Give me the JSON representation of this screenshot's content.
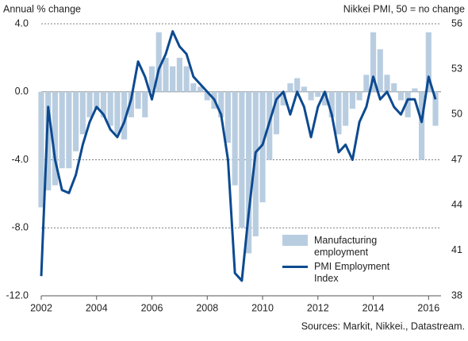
{
  "chart_data": {
    "type": "bar-line",
    "ylabel": "Annual % change",
    "y2label": "Nikkei PMI, 50 = no change",
    "source": "Sources: Markit, Nikkei., Datastream.",
    "xlim": [
      2002,
      2016.45
    ],
    "xticks": [
      2002,
      2004,
      2006,
      2008,
      2010,
      2012,
      2014,
      2016
    ],
    "ylim": [
      -12,
      4
    ],
    "yticks": [
      {
        "value": -12,
        "label": "-12.0"
      },
      {
        "value": -8,
        "label": "-8.0"
      },
      {
        "value": -4,
        "label": "-4.0"
      },
      {
        "value": 0,
        "label": "0.0"
      },
      {
        "value": 4,
        "label": "4.0"
      }
    ],
    "y2lim": [
      38,
      56
    ],
    "y2ticks": [
      38,
      41,
      44,
      47,
      50,
      53,
      56
    ],
    "grid": true,
    "x": [
      2002.0,
      2002.25,
      2002.5,
      2002.75,
      2003.0,
      2003.25,
      2003.5,
      2003.75,
      2004.0,
      2004.25,
      2004.5,
      2004.75,
      2005.0,
      2005.25,
      2005.5,
      2005.75,
      2006.0,
      2006.25,
      2006.5,
      2006.75,
      2007.0,
      2007.25,
      2007.5,
      2007.75,
      2008.0,
      2008.25,
      2008.5,
      2008.75,
      2009.0,
      2009.25,
      2009.5,
      2009.75,
      2010.0,
      2010.25,
      2010.5,
      2010.75,
      2011.0,
      2011.25,
      2011.5,
      2011.75,
      2012.0,
      2012.25,
      2012.5,
      2012.75,
      2013.0,
      2013.25,
      2013.5,
      2013.75,
      2014.0,
      2014.25,
      2014.5,
      2014.75,
      2015.0,
      2015.25,
      2015.5,
      2015.75,
      2016.0,
      2016.25
    ],
    "series": [
      {
        "name": "Manufacturing employment",
        "color": "#b9cde1",
        "kind": "bar",
        "values": [
          -6.8,
          -5.8,
          -5.5,
          -4.5,
          -4.5,
          -3.5,
          -2.5,
          -1.5,
          -1.0,
          -1.5,
          -2.0,
          -2.5,
          -2.8,
          -1.5,
          -1.0,
          -1.5,
          1.5,
          3.5,
          2.0,
          1.5,
          2.0,
          1.5,
          0.5,
          0.3,
          -0.5,
          -1.0,
          -1.5,
          -3.0,
          -5.5,
          -8.0,
          -9.5,
          -8.5,
          -6.5,
          -4.0,
          -2.5,
          -0.8,
          0.5,
          0.8,
          0.3,
          -0.5,
          -0.3,
          -0.8,
          -1.5,
          -2.5,
          -2.0,
          -1.0,
          -0.5,
          1.0,
          3.5,
          2.5,
          1.0,
          0.5,
          -0.5,
          -1.5,
          0.2,
          -4.0,
          3.5,
          -2.0
        ]
      },
      {
        "name": "PMI Employment Index",
        "color": "#0d4a90",
        "kind": "line",
        "axis": "y2",
        "values": [
          39.3,
          50.5,
          47.0,
          45.0,
          44.8,
          46.0,
          48.0,
          49.5,
          50.5,
          50.0,
          49.0,
          48.5,
          49.5,
          51.0,
          53.5,
          52.5,
          51.0,
          53.0,
          54.0,
          55.5,
          54.5,
          54.0,
          52.5,
          52.0,
          51.5,
          51.0,
          50.0,
          47.0,
          39.5,
          39.0,
          43.5,
          47.5,
          48.0,
          49.5,
          51.0,
          51.5,
          50.0,
          51.5,
          50.5,
          48.5,
          50.5,
          51.5,
          50.0,
          47.5,
          48.0,
          47.0,
          49.5,
          50.5,
          52.5,
          51.0,
          51.5,
          50.5,
          50.0,
          51.0,
          51.0,
          49.5,
          52.5,
          51.0
        ]
      }
    ]
  }
}
